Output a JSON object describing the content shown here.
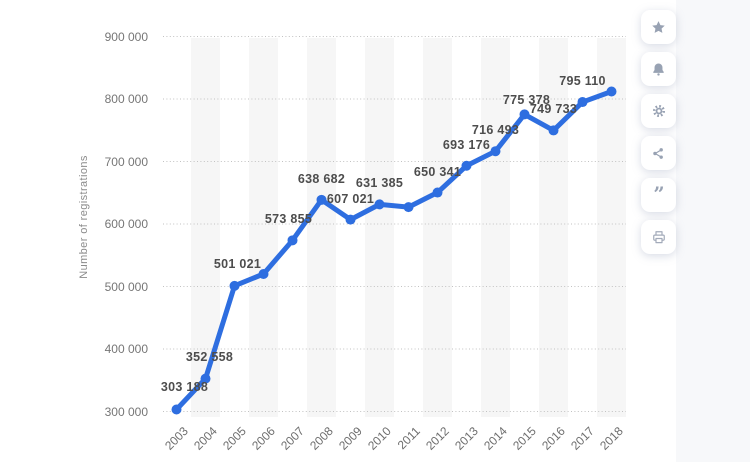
{
  "chart_data": {
    "type": "line",
    "title": "",
    "ylabel": "Number of registrations",
    "xlabel": "",
    "x": [
      "2003",
      "2004",
      "2005",
      "2006",
      "2007",
      "2008",
      "2009",
      "2010",
      "2011",
      "2012",
      "2013",
      "2014",
      "2015",
      "2016",
      "2017",
      "2018"
    ],
    "values": [
      303188,
      352558,
      501021,
      520000,
      573855,
      638682,
      607021,
      631385,
      627000,
      650341,
      693176,
      716493,
      775378,
      749733,
      795110,
      812000
    ],
    "point_labels": [
      "303 188",
      "352 558",
      "501 021",
      null,
      "573 855",
      "638 682",
      "607 021",
      "631 385",
      null,
      "650 341",
      "693 176",
      "716 493",
      "775 378",
      "749 733",
      "795 110",
      null
    ],
    "y_ticks": [
      {
        "value": 300000,
        "label": "300 000"
      },
      {
        "value": 400000,
        "label": "400 000"
      },
      {
        "value": 500000,
        "label": "500 000"
      },
      {
        "value": 600000,
        "label": "600 000"
      },
      {
        "value": 700000,
        "label": "700 000"
      },
      {
        "value": 800000,
        "label": "800 000"
      },
      {
        "value": 900000,
        "label": "900 000"
      }
    ],
    "ylim": [
      300000,
      900000
    ],
    "grid": "horizontal-dotted",
    "legend": "none",
    "series_color": "#2e6ee0",
    "band_color": "#f6f6f6",
    "gridline_color": "#c2c2c2",
    "label_offsets": {
      "0": [
        8,
        -16
      ],
      "1": [
        4,
        -15
      ],
      "2": [
        3,
        -15
      ],
      "4": [
        -4,
        -14
      ],
      "12": [
        2,
        -7
      ]
    }
  },
  "toolbar": {
    "buttons": [
      {
        "label": "favorite",
        "icon": "star-icon"
      },
      {
        "label": "alerts",
        "icon": "bell-icon"
      },
      {
        "label": "settings",
        "icon": "gear-icon"
      },
      {
        "label": "share",
        "icon": "share-icon"
      },
      {
        "label": "cite",
        "icon": "quote-icon"
      },
      {
        "label": "print",
        "icon": "printer-icon"
      }
    ]
  }
}
